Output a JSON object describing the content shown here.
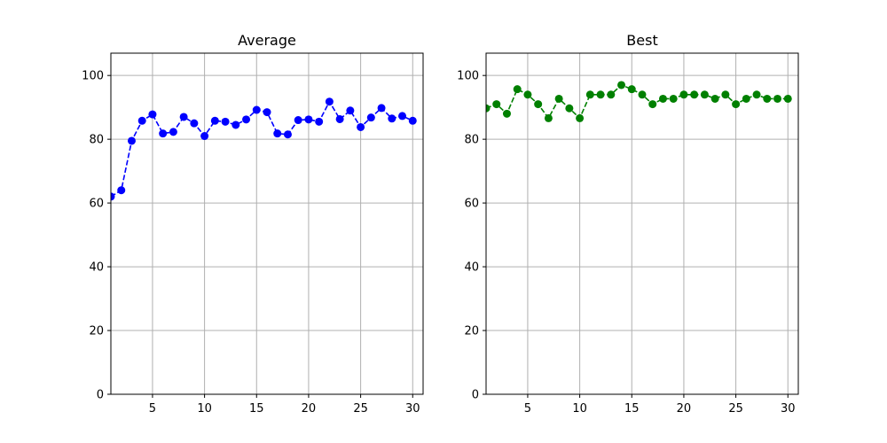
{
  "chart_data": [
    {
      "type": "line",
      "title": "Average",
      "xlabel": "",
      "ylabel": "",
      "xlim": [
        1,
        31
      ],
      "ylim": [
        0,
        107
      ],
      "xticks": [
        5,
        10,
        15,
        20,
        25,
        30
      ],
      "yticks": [
        0,
        20,
        40,
        60,
        80,
        100
      ],
      "grid": true,
      "series": [
        {
          "color": "#0000ff",
          "line_style": "dashed",
          "marker": "circle",
          "x": [
            1,
            2,
            3,
            4,
            5,
            6,
            7,
            8,
            9,
            10,
            11,
            12,
            13,
            14,
            15,
            16,
            17,
            18,
            19,
            20,
            21,
            22,
            23,
            24,
            25,
            26,
            27,
            28,
            29,
            30
          ],
          "y": [
            62.0,
            64.0,
            79.5,
            85.8,
            87.8,
            81.8,
            82.3,
            87.0,
            85.0,
            81.0,
            85.8,
            85.5,
            84.5,
            86.2,
            89.2,
            88.5,
            81.8,
            81.5,
            86.0,
            86.2,
            85.5,
            91.8,
            86.3,
            89.0,
            83.8,
            86.8,
            89.8,
            86.5,
            87.3,
            85.8
          ]
        }
      ]
    },
    {
      "type": "line",
      "title": "Best",
      "xlabel": "",
      "ylabel": "",
      "xlim": [
        1,
        31
      ],
      "ylim": [
        0,
        107
      ],
      "xticks": [
        5,
        10,
        15,
        20,
        25,
        30
      ],
      "yticks": [
        0,
        20,
        40,
        60,
        80,
        100
      ],
      "grid": true,
      "series": [
        {
          "color": "#008000",
          "line_style": "dashed",
          "marker": "circle",
          "x": [
            1,
            2,
            3,
            4,
            5,
            6,
            7,
            8,
            9,
            10,
            11,
            12,
            13,
            14,
            15,
            16,
            17,
            18,
            19,
            20,
            21,
            22,
            23,
            24,
            25,
            26,
            27,
            28,
            29,
            30
          ],
          "y": [
            89.7,
            91.0,
            88.0,
            95.7,
            94.0,
            91.0,
            86.6,
            92.7,
            89.7,
            86.6,
            94.0,
            94.0,
            94.0,
            97.0,
            95.7,
            94.0,
            91.0,
            92.7,
            92.7,
            94.0,
            94.0,
            94.0,
            92.7,
            94.0,
            91.0,
            92.7,
            94.0,
            92.7,
            92.7,
            92.7
          ]
        }
      ]
    }
  ]
}
